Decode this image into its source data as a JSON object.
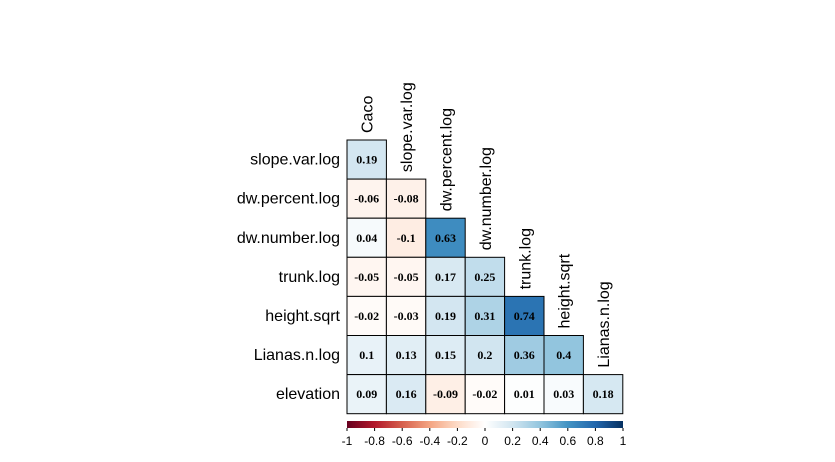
{
  "chart_data": {
    "type": "heatmap",
    "variables": [
      "Caco",
      "slope.var.log",
      "dw.percent.log",
      "dw.number.log",
      "trunk.log",
      "height.sqrt",
      "Lianas.n.log",
      "elevation"
    ],
    "row_labels": [
      "slope.var.log",
      "dw.percent.log",
      "dw.number.log",
      "trunk.log",
      "height.sqrt",
      "Lianas.n.log",
      "elevation"
    ],
    "col_labels": [
      "Caco",
      "slope.var.log",
      "dw.percent.log",
      "dw.number.log",
      "trunk.log",
      "height.sqrt",
      "Lianas.n.log"
    ],
    "values": [
      [
        0.19
      ],
      [
        -0.06,
        -0.08
      ],
      [
        0.04,
        -0.1,
        0.63
      ],
      [
        -0.05,
        -0.05,
        0.17,
        0.25
      ],
      [
        -0.02,
        -0.03,
        0.19,
        0.31,
        0.74
      ],
      [
        0.1,
        0.13,
        0.15,
        0.2,
        0.36,
        0.4
      ],
      [
        0.09,
        0.16,
        -0.09,
        -0.02,
        0.01,
        0.03,
        0.18
      ]
    ],
    "value_labels": [
      [
        "0.19"
      ],
      [
        "-0.06",
        "-0.08"
      ],
      [
        "0.04",
        "-0.1",
        "0.63"
      ],
      [
        "-0.05",
        "-0.05",
        "0.17",
        "0.25"
      ],
      [
        "-0.02",
        "-0.03",
        "0.19",
        "0.31",
        "0.74"
      ],
      [
        "0.1",
        "0.13",
        "0.15",
        "0.2",
        "0.36",
        "0.4"
      ],
      [
        "0.09",
        "0.16",
        "-0.09",
        "-0.02",
        "0.01",
        "0.03",
        "0.18"
      ]
    ],
    "layout": "lower-triangle",
    "color_scale": {
      "range": [
        -1,
        1
      ],
      "low": "#67001F",
      "mid": "#FFFFFF",
      "high": "#053061",
      "ticks": [
        -1,
        -0.8,
        -0.6,
        -0.4,
        -0.2,
        0,
        0.2,
        0.4,
        0.6,
        0.8,
        1
      ],
      "tick_labels": [
        "-1",
        "-0.8",
        "-0.6",
        "-0.4",
        "-0.2",
        "0",
        "0.2",
        "0.4",
        "0.6",
        "0.8",
        "1"
      ]
    },
    "legend_placement": "bottom"
  }
}
